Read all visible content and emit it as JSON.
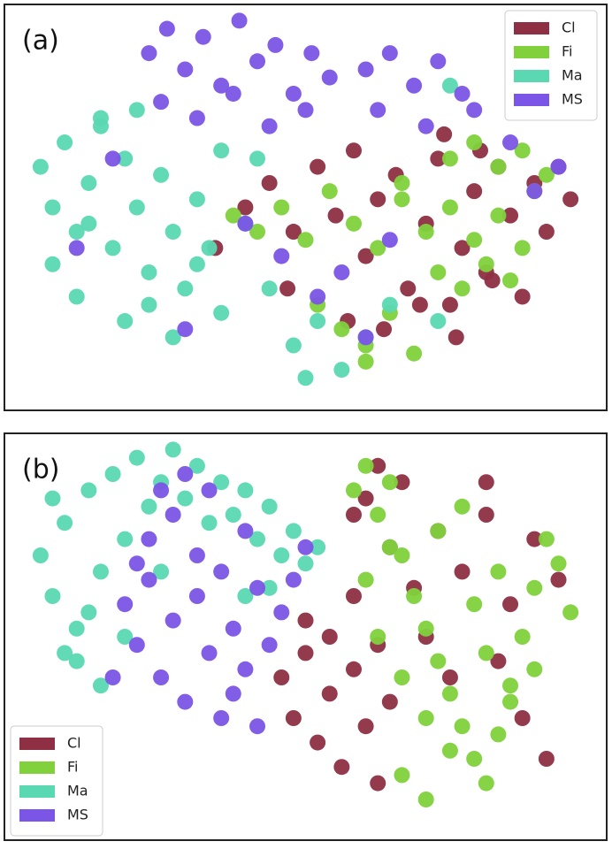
{
  "chart_data": [
    {
      "type": "scatter",
      "title": "(a)",
      "legend": "upper right",
      "xlim": [
        0,
        100
      ],
      "ylim": [
        0,
        100
      ],
      "series": [
        {
          "name": "Cl",
          "color": "#8e2f43",
          "x": [
            40,
            44,
            48,
            52,
            55,
            58,
            60,
            62,
            65,
            67,
            70,
            72,
            74,
            76,
            78,
            80,
            82,
            84,
            86,
            88,
            90,
            92,
            94,
            57,
            63,
            69,
            75,
            81,
            73,
            79,
            35,
            47
          ],
          "values": [
            50,
            56,
            44,
            60,
            48,
            64,
            38,
            52,
            58,
            30,
            46,
            62,
            26,
            40,
            54,
            34,
            60,
            48,
            28,
            56,
            44,
            60,
            52,
            22,
            20,
            26,
            18,
            32,
            68,
            64,
            40,
            30
          ]
        },
        {
          "name": "Fi",
          "color": "#80d13c",
          "x": [
            38,
            42,
            46,
            50,
            54,
            58,
            62,
            66,
            70,
            72,
            74,
            76,
            78,
            80,
            82,
            84,
            86,
            88,
            56,
            60,
            64,
            68,
            74,
            78,
            82,
            86,
            52,
            60,
            66,
            90
          ],
          "values": [
            48,
            44,
            50,
            42,
            54,
            46,
            40,
            56,
            44,
            34,
            50,
            30,
            42,
            36,
            48,
            32,
            40,
            54,
            20,
            16,
            24,
            14,
            62,
            66,
            60,
            64,
            26,
            12,
            52,
            58
          ]
        },
        {
          "name": "Ma",
          "color": "#5ad8b2",
          "x": [
            6,
            8,
            10,
            12,
            14,
            16,
            18,
            20,
            22,
            24,
            26,
            28,
            30,
            32,
            34,
            8,
            12,
            16,
            20,
            24,
            28,
            32,
            36,
            40,
            44,
            48,
            52,
            56,
            60,
            64,
            36,
            42,
            50,
            72,
            74,
            14,
            22
          ],
          "values": [
            60,
            50,
            66,
            44,
            56,
            70,
            40,
            62,
            50,
            34,
            58,
            44,
            30,
            52,
            40,
            36,
            28,
            72,
            22,
            26,
            18,
            36,
            24,
            46,
            30,
            16,
            22,
            10,
            18,
            26,
            64,
            62,
            8,
            22,
            80,
            46,
            74
          ]
        },
        {
          "name": "MS",
          "color": "#7b55e6",
          "x": [
            24,
            27,
            30,
            33,
            36,
            39,
            42,
            45,
            48,
            51,
            54,
            26,
            32,
            38,
            44,
            50,
            60,
            64,
            68,
            72,
            76,
            62,
            70,
            78,
            84,
            92,
            18,
            40,
            46,
            52,
            56,
            60,
            30,
            12,
            64,
            88
          ],
          "values": [
            88,
            94,
            84,
            92,
            80,
            96,
            86,
            90,
            78,
            88,
            82,
            76,
            72,
            78,
            70,
            74,
            84,
            88,
            80,
            86,
            78,
            74,
            70,
            74,
            66,
            60,
            62,
            46,
            38,
            28,
            34,
            18,
            20,
            40,
            42,
            54
          ]
        }
      ]
    },
    {
      "type": "scatter",
      "title": "(b)",
      "legend": "lower left",
      "xlim": [
        0,
        100
      ],
      "ylim": [
        0,
        100
      ],
      "series": [
        {
          "name": "Cl",
          "color": "#8e2f43",
          "x": [
            46,
            48,
            50,
            52,
            54,
            56,
            58,
            60,
            62,
            64,
            50,
            54,
            58,
            62,
            60,
            64,
            68,
            72,
            76,
            80,
            84,
            88,
            92,
            70,
            74,
            82,
            86,
            90,
            62,
            66,
            58,
            80
          ],
          "values": [
            40,
            30,
            46,
            24,
            36,
            18,
            42,
            28,
            14,
            34,
            54,
            50,
            60,
            48,
            84,
            72,
            62,
            76,
            66,
            80,
            58,
            74,
            64,
            50,
            40,
            44,
            30,
            20,
            92,
            88,
            80,
            88
          ]
        },
        {
          "name": "Fi",
          "color": "#80d13c",
          "x": [
            58,
            60,
            62,
            64,
            66,
            68,
            70,
            72,
            74,
            76,
            78,
            80,
            82,
            84,
            86,
            88,
            90,
            92,
            94,
            62,
            66,
            70,
            74,
            78,
            82,
            72,
            76,
            80,
            84,
            88,
            66,
            70,
            60,
            64
          ],
          "values": [
            86,
            92,
            80,
            88,
            70,
            60,
            52,
            44,
            36,
            28,
            20,
            14,
            26,
            38,
            50,
            62,
            74,
            68,
            56,
            50,
            40,
            30,
            22,
            58,
            66,
            76,
            82,
            46,
            34,
            42,
            16,
            10,
            64,
            72
          ]
        },
        {
          "name": "Ma",
          "color": "#5ad8b2",
          "x": [
            6,
            8,
            10,
            12,
            14,
            16,
            18,
            20,
            22,
            24,
            26,
            28,
            30,
            32,
            34,
            36,
            38,
            40,
            42,
            44,
            46,
            48,
            50,
            52,
            12,
            16,
            20,
            10,
            14,
            44,
            8,
            26,
            40
          ],
          "values": [
            70,
            60,
            78,
            52,
            86,
            66,
            90,
            74,
            94,
            82,
            88,
            96,
            84,
            92,
            78,
            88,
            80,
            86,
            74,
            82,
            70,
            76,
            68,
            72,
            44,
            38,
            50,
            46,
            56,
            62,
            84,
            66,
            60
          ]
        },
        {
          "name": "MS",
          "color": "#7b55e6",
          "x": [
            20,
            22,
            24,
            26,
            28,
            30,
            32,
            34,
            36,
            38,
            40,
            42,
            44,
            46,
            24,
            28,
            32,
            36,
            40,
            30,
            34,
            26,
            38,
            42,
            48,
            50,
            18,
            22
          ],
          "values": [
            58,
            48,
            64,
            40,
            54,
            34,
            60,
            46,
            30,
            52,
            42,
            62,
            48,
            56,
            74,
            80,
            70,
            66,
            76,
            90,
            86,
            86,
            36,
            28,
            64,
            72,
            40,
            68
          ]
        }
      ]
    }
  ]
}
